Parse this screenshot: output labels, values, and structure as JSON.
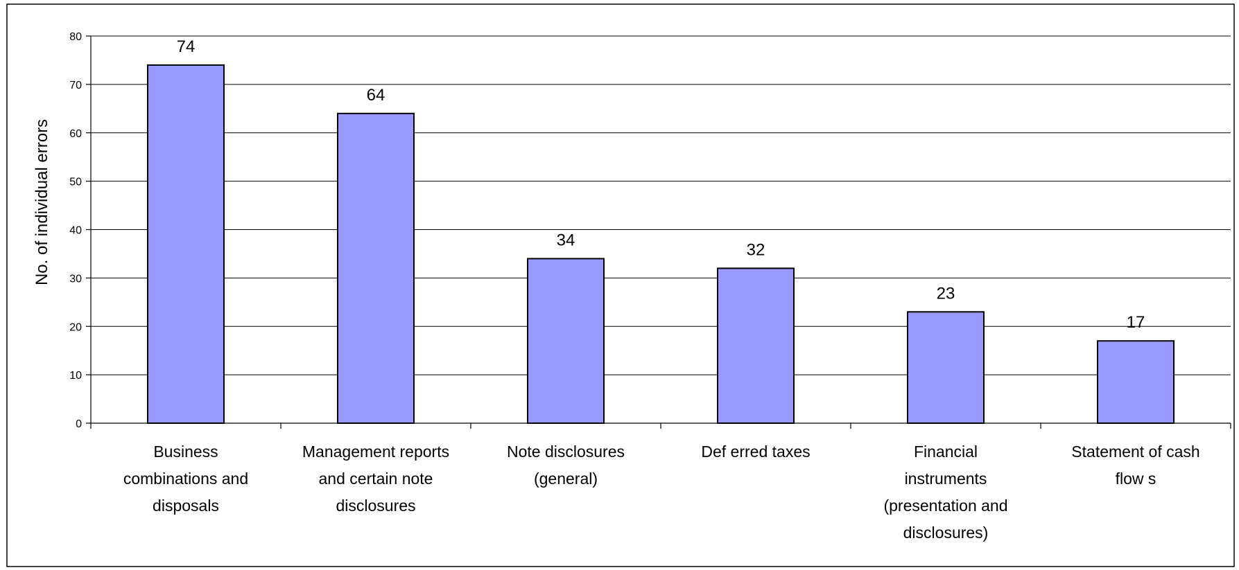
{
  "chart_data": {
    "type": "bar",
    "title": "",
    "xlabel": "",
    "ylabel": "No. of individual errors",
    "ylim": [
      0,
      80
    ],
    "yticks": [
      0,
      10,
      20,
      30,
      40,
      50,
      60,
      70,
      80
    ],
    "grid": true,
    "legend": "none",
    "bar_color": "#9999ff",
    "categories": [
      [
        "Business",
        "combinations and",
        "disposals"
      ],
      [
        "Management reports",
        "and certain note",
        "disclosures"
      ],
      [
        "Note disclosures",
        "(general)"
      ],
      [
        "Def erred taxes"
      ],
      [
        "Financial",
        "instruments",
        "(presentation and",
        "disclosures)"
      ],
      [
        "Statement of cash",
        "flow s"
      ]
    ],
    "values": [
      74,
      64,
      34,
      32,
      23,
      17
    ],
    "data_labels": [
      "74",
      "64",
      "34",
      "32",
      "23",
      "17"
    ]
  }
}
